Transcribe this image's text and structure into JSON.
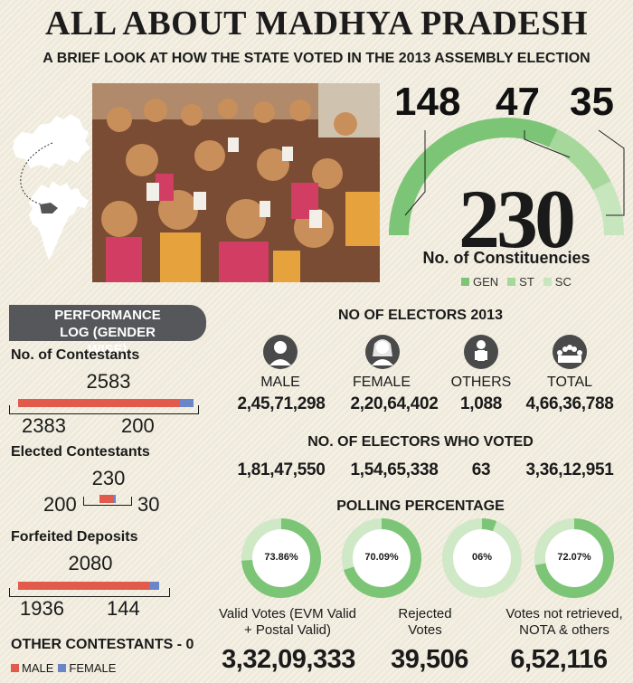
{
  "header": {
    "title": "ALL ABOUT MADHYA PRADESH",
    "subtitle": "A BRIEF LOOK AT HOW THE STATE VOTED IN THE 2013 ASSEMBLY ELECTION"
  },
  "colors": {
    "gen": "#7cc576",
    "st": "#a6d89b",
    "sc": "#c7e6bd",
    "male": "#e25a4c",
    "female": "#6a86c8",
    "dark_box": "#55575a",
    "map": "#ffffff"
  },
  "constituencies": {
    "gen": "148",
    "st": "47",
    "sc": "35",
    "total": "230",
    "label": "No. of Constituencies",
    "legend": [
      "GEN",
      "ST",
      "SC"
    ]
  },
  "performance": {
    "heading": "PERFORMANCE LOG (GENDER WISE)",
    "contestants": {
      "label": "No. of Contestants",
      "total": "2583",
      "male": "2383",
      "female": "200"
    },
    "elected": {
      "label": "Elected Contestants",
      "total": "230",
      "male": "200",
      "female": "30"
    },
    "forfeited": {
      "label": "Forfeited Deposits",
      "total": "2080",
      "male": "1936",
      "female": "144"
    },
    "other": "OTHER CONTESTANTS - 0",
    "legend_male": "MALE",
    "legend_female": "FEMALE"
  },
  "electors": {
    "heading": "NO OF ELECTORS 2013",
    "labels": [
      "MALE",
      "FEMALE",
      "OTHERS",
      "TOTAL"
    ],
    "values": [
      "2,45,71,298",
      "2,20,64,402",
      "1,088",
      "4,66,36,788"
    ],
    "icons": [
      "male-icon",
      "female-icon",
      "others-icon",
      "total-icon"
    ]
  },
  "voted": {
    "heading": "NO. OF ELECTORS WHO VOTED",
    "values": [
      "1,81,47,550",
      "1,54,65,338",
      "63",
      "3,36,12,951"
    ]
  },
  "polling": {
    "heading": "POLLING PERCENTAGE",
    "values": [
      "73.86%",
      "70.09%",
      "06%",
      "72.07%"
    ]
  },
  "votes": {
    "labels": [
      "Valid Votes (EVM Valid + Postal Valid)",
      "Rejected Votes",
      "Votes not retrieved, NOTA & others"
    ],
    "values": [
      "3,32,09,333",
      "39,506",
      "6,52,116"
    ]
  },
  "chart_data": [
    {
      "type": "pie",
      "title": "No. of Constituencies",
      "categories": [
        "GEN",
        "ST",
        "SC"
      ],
      "values": [
        148,
        47,
        35
      ],
      "total": 230
    },
    {
      "type": "bar",
      "title": "PERFORMANCE LOG (GENDER WISE)",
      "categories": [
        "No. of Contestants",
        "Elected Contestants",
        "Forfeited Deposits"
      ],
      "series": [
        {
          "name": "MALE",
          "values": [
            2383,
            200,
            1936
          ]
        },
        {
          "name": "FEMALE",
          "values": [
            200,
            30,
            144
          ]
        }
      ],
      "totals": [
        2583,
        230,
        2080
      ]
    },
    {
      "type": "pie",
      "title": "POLLING PERCENTAGE",
      "categories": [
        "MALE",
        "FEMALE",
        "OTHERS",
        "TOTAL"
      ],
      "values": [
        73.86,
        70.09,
        6,
        72.07
      ]
    }
  ]
}
